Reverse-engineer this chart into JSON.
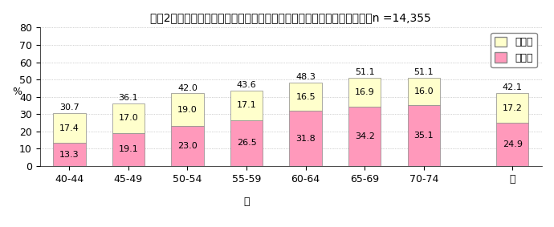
{
  "title": "令和2年度　西尾市メタボリックシンドローム該当者・予備群（男性）　n =14,355",
  "ylabel": "%",
  "xlabel": "歳",
  "categories": [
    "40-44",
    "45-49",
    "50-54",
    "55-59",
    "60-64",
    "65-69",
    "70-74",
    "計"
  ],
  "bottom_values": [
    13.3,
    19.1,
    23.0,
    26.5,
    31.8,
    34.2,
    35.1,
    24.9
  ],
  "top_values": [
    17.4,
    17.0,
    19.0,
    17.1,
    16.5,
    16.9,
    16.0,
    17.2
  ],
  "totals": [
    30.7,
    36.1,
    42.0,
    43.6,
    48.3,
    51.1,
    51.1,
    42.1
  ],
  "bottom_color": "#FF99BB",
  "top_color": "#FFFFCC",
  "bottom_label": "該当者",
  "top_label": "予備群",
  "ylim": [
    0,
    80
  ],
  "yticks": [
    0,
    10,
    20,
    30,
    40,
    50,
    60,
    70,
    80
  ],
  "grid_color": "#AAAAAA",
  "background_color": "#FFFFFF",
  "bar_edge_color": "#888888",
  "font_size_title": 10,
  "font_size_label": 9,
  "font_size_tick": 9,
  "font_size_value": 8
}
